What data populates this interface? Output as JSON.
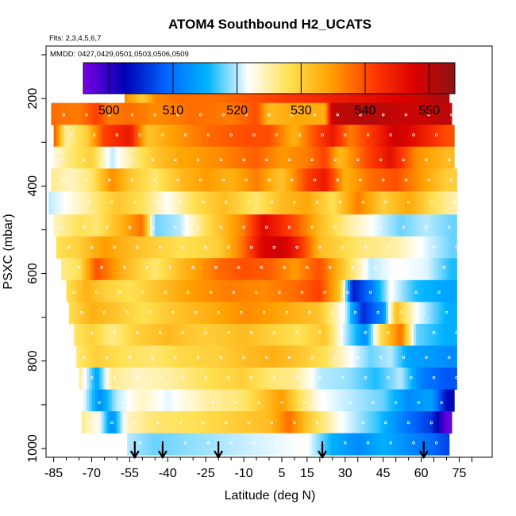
{
  "chart_data": {
    "type": "heatmap",
    "title": "ATOM4 Southbound H2_UCATS",
    "subtitle_flights": "Flts: 2,3,4,5,6,7",
    "subtitle_dates": "MMDD: 0427,0429,0501,0503,0506,0509",
    "xlabel": "Latitude (deg N)",
    "ylabel": "PSXC (mbar)",
    "xlim": [
      -88,
      88
    ],
    "ylim": [
      1020,
      80
    ],
    "x_ticks": [
      -85,
      -70,
      -55,
      -40,
      -25,
      -10,
      5,
      15,
      30,
      45,
      60,
      75
    ],
    "y_ticks": [
      200,
      400,
      600,
      800,
      1000
    ],
    "colorbar": {
      "range": [
        496,
        554
      ],
      "ticks": [
        500,
        510,
        520,
        530,
        540,
        550
      ],
      "colors": [
        "#7a00e6",
        "#0000b4",
        "#0064ff",
        "#00b4ff",
        "#ffffff",
        "#ffe050",
        "#ffa000",
        "#ff3c00",
        "#dc0000",
        "#8c1414"
      ]
    },
    "arrow_latitudes": [
      -53,
      -42,
      -20,
      21,
      61
    ],
    "rows": [
      {
        "p": 185,
        "lat_start": -57,
        "lat_end": 71,
        "knots": [
          [
            -57,
            536
          ],
          [
            -50,
            530
          ],
          [
            -45,
            536
          ],
          [
            -35,
            538
          ],
          [
            -20,
            538
          ],
          [
            -5,
            540
          ],
          [
            10,
            542
          ],
          [
            25,
            544
          ],
          [
            40,
            546
          ],
          [
            55,
            548
          ],
          [
            68,
            551
          ]
        ]
      },
      {
        "p": 235,
        "lat_start": -86,
        "lat_end": 72,
        "knots": [
          [
            -86,
            538
          ],
          [
            -75,
            537
          ],
          [
            -68,
            541
          ],
          [
            -63,
            537
          ],
          [
            -55,
            538
          ],
          [
            -45,
            536
          ],
          [
            -30,
            538
          ],
          [
            -15,
            537
          ],
          [
            -5,
            540
          ],
          [
            0,
            532
          ],
          [
            10,
            534
          ],
          [
            22,
            533
          ],
          [
            25,
            550
          ],
          [
            40,
            551
          ],
          [
            55,
            549
          ],
          [
            70,
            550
          ]
        ]
      },
      {
        "p": 285,
        "lat_start": -85,
        "lat_end": 73,
        "knots": [
          [
            -85,
            540
          ],
          [
            -80,
            525
          ],
          [
            -72,
            530
          ],
          [
            -65,
            541
          ],
          [
            -55,
            545
          ],
          [
            -48,
            531
          ],
          [
            -40,
            534
          ],
          [
            -25,
            538
          ],
          [
            -10,
            540
          ],
          [
            0,
            540
          ],
          [
            10,
            533
          ],
          [
            18,
            540
          ],
          [
            25,
            545
          ],
          [
            32,
            537
          ],
          [
            42,
            543
          ],
          [
            50,
            549
          ],
          [
            60,
            545
          ],
          [
            70,
            540
          ]
        ]
      },
      {
        "p": 335,
        "lat_start": -85,
        "lat_end": 73,
        "knots": [
          [
            -85,
            523
          ],
          [
            -78,
            527
          ],
          [
            -70,
            530
          ],
          [
            -62,
            520
          ],
          [
            -55,
            525
          ],
          [
            -45,
            531
          ],
          [
            -35,
            534
          ],
          [
            -20,
            536
          ],
          [
            -5,
            539
          ],
          [
            5,
            535
          ],
          [
            15,
            537
          ],
          [
            22,
            541
          ],
          [
            28,
            532
          ],
          [
            38,
            540
          ],
          [
            48,
            546
          ],
          [
            58,
            536
          ],
          [
            70,
            532
          ]
        ]
      },
      {
        "p": 385,
        "lat_start": -86,
        "lat_end": 74,
        "knots": [
          [
            -86,
            526
          ],
          [
            -78,
            524
          ],
          [
            -70,
            527
          ],
          [
            -62,
            536
          ],
          [
            -55,
            531
          ],
          [
            -45,
            527
          ],
          [
            -35,
            532
          ],
          [
            -25,
            535
          ],
          [
            -15,
            533
          ],
          [
            -5,
            537
          ],
          [
            5,
            531
          ],
          [
            15,
            541
          ],
          [
            22,
            545
          ],
          [
            30,
            533
          ],
          [
            40,
            538
          ],
          [
            50,
            540
          ],
          [
            60,
            535
          ],
          [
            70,
            530
          ]
        ]
      },
      {
        "p": 440,
        "lat_start": -87,
        "lat_end": 74,
        "knots": [
          [
            -87,
            520
          ],
          [
            -80,
            522
          ],
          [
            -72,
            525
          ],
          [
            -60,
            531
          ],
          [
            -50,
            528
          ],
          [
            -40,
            522
          ],
          [
            -30,
            528
          ],
          [
            -18,
            532
          ],
          [
            -5,
            527
          ],
          [
            5,
            532
          ],
          [
            15,
            534
          ],
          [
            25,
            528
          ],
          [
            35,
            537
          ],
          [
            45,
            530
          ],
          [
            55,
            534
          ],
          [
            65,
            528
          ],
          [
            72,
            525
          ]
        ]
      },
      {
        "p": 490,
        "lat_start": -85,
        "lat_end": 74,
        "knots": [
          [
            -85,
            524
          ],
          [
            -75,
            528
          ],
          [
            -68,
            527
          ],
          [
            -58,
            533
          ],
          [
            -50,
            538
          ],
          [
            -45,
            518
          ],
          [
            -35,
            520
          ],
          [
            -25,
            528
          ],
          [
            -10,
            537
          ],
          [
            -2,
            547
          ],
          [
            10,
            540
          ],
          [
            20,
            532
          ],
          [
            30,
            526
          ],
          [
            40,
            522
          ],
          [
            52,
            518
          ],
          [
            62,
            520
          ],
          [
            72,
            518
          ]
        ]
      },
      {
        "p": 540,
        "lat_start": -84,
        "lat_end": 74,
        "knots": [
          [
            -84,
            528
          ],
          [
            -75,
            530
          ],
          [
            -65,
            535
          ],
          [
            -55,
            532
          ],
          [
            -45,
            530
          ],
          [
            -35,
            528
          ],
          [
            -20,
            530
          ],
          [
            -10,
            538
          ],
          [
            -3,
            547
          ],
          [
            5,
            549
          ],
          [
            12,
            543
          ],
          [
            20,
            532
          ],
          [
            35,
            527
          ],
          [
            50,
            525
          ],
          [
            62,
            521
          ],
          [
            72,
            518
          ]
        ]
      },
      {
        "p": 590,
        "lat_start": -82,
        "lat_end": 74,
        "knots": [
          [
            -82,
            526
          ],
          [
            -75,
            528
          ],
          [
            -68,
            540
          ],
          [
            -58,
            533
          ],
          [
            -45,
            527
          ],
          [
            -35,
            532
          ],
          [
            -20,
            538
          ],
          [
            -10,
            540
          ],
          [
            0,
            539
          ],
          [
            10,
            535
          ],
          [
            20,
            540
          ],
          [
            30,
            530
          ],
          [
            40,
            520
          ],
          [
            50,
            522
          ],
          [
            62,
            521
          ],
          [
            72,
            516
          ]
        ]
      },
      {
        "p": 640,
        "lat_start": -80,
        "lat_end": 74,
        "knots": [
          [
            -80,
            528
          ],
          [
            -72,
            533
          ],
          [
            -65,
            530
          ],
          [
            -55,
            528
          ],
          [
            -45,
            531
          ],
          [
            -30,
            535
          ],
          [
            -15,
            537
          ],
          [
            -2,
            536
          ],
          [
            10,
            538
          ],
          [
            20,
            541
          ],
          [
            28,
            531
          ],
          [
            33,
            504
          ],
          [
            40,
            510
          ],
          [
            48,
            522
          ],
          [
            58,
            516
          ],
          [
            70,
            514
          ]
        ]
      },
      {
        "p": 690,
        "lat_start": -79,
        "lat_end": 74,
        "knots": [
          [
            -79,
            528
          ],
          [
            -70,
            533
          ],
          [
            -60,
            531
          ],
          [
            -50,
            528
          ],
          [
            -38,
            531
          ],
          [
            -25,
            533
          ],
          [
            -10,
            536
          ],
          [
            0,
            535
          ],
          [
            10,
            533
          ],
          [
            20,
            531
          ],
          [
            30,
            521
          ],
          [
            37,
            505
          ],
          [
            45,
            512
          ],
          [
            50,
            532
          ],
          [
            58,
            522
          ],
          [
            70,
            515
          ]
        ]
      },
      {
        "p": 740,
        "lat_start": -77,
        "lat_end": 74,
        "knots": [
          [
            -77,
            527
          ],
          [
            -70,
            530
          ],
          [
            -62,
            526
          ],
          [
            -52,
            530
          ],
          [
            -40,
            532
          ],
          [
            -25,
            530
          ],
          [
            -10,
            532
          ],
          [
            0,
            530
          ],
          [
            12,
            528
          ],
          [
            22,
            531
          ],
          [
            30,
            520
          ],
          [
            38,
            512
          ],
          [
            44,
            528
          ],
          [
            52,
            538
          ],
          [
            58,
            518
          ],
          [
            70,
            515
          ]
        ]
      },
      {
        "p": 790,
        "lat_start": -76,
        "lat_end": 74,
        "knots": [
          [
            -76,
            527
          ],
          [
            -68,
            530
          ],
          [
            -58,
            528
          ],
          [
            -45,
            527
          ],
          [
            -35,
            529
          ],
          [
            -20,
            530
          ],
          [
            -8,
            532
          ],
          [
            2,
            533
          ],
          [
            12,
            531
          ],
          [
            22,
            528
          ],
          [
            32,
            522
          ],
          [
            40,
            518
          ],
          [
            48,
            520
          ],
          [
            55,
            514
          ],
          [
            65,
            513
          ],
          [
            72,
            512
          ]
        ]
      },
      {
        "p": 840,
        "lat_start": -75,
        "lat_end": 74,
        "knots": [
          [
            -75,
            526
          ],
          [
            -68,
            514
          ],
          [
            -62,
            526
          ],
          [
            -52,
            524
          ],
          [
            -40,
            525
          ],
          [
            -25,
            528
          ],
          [
            -10,
            530
          ],
          [
            0,
            527
          ],
          [
            10,
            526
          ],
          [
            20,
            520
          ],
          [
            32,
            519
          ],
          [
            42,
            516
          ],
          [
            52,
            520
          ],
          [
            60,
            511
          ],
          [
            70,
            508
          ]
        ]
      },
      {
        "p": 890,
        "lat_start": -74,
        "lat_end": 73,
        "knots": [
          [
            -74,
            523
          ],
          [
            -67,
            512
          ],
          [
            -60,
            520
          ],
          [
            -50,
            524
          ],
          [
            -40,
            521
          ],
          [
            -25,
            525
          ],
          [
            -10,
            527
          ],
          [
            5,
            535
          ],
          [
            12,
            528
          ],
          [
            20,
            522
          ],
          [
            32,
            520
          ],
          [
            45,
            518
          ],
          [
            55,
            512
          ],
          [
            64,
            514
          ],
          [
            70,
            503
          ]
        ]
      },
      {
        "p": 940,
        "lat_start": -74,
        "lat_end": 72,
        "knots": [
          [
            -74,
            526
          ],
          [
            -67,
            522
          ],
          [
            -62,
            512
          ],
          [
            -56,
            524
          ],
          [
            -45,
            527
          ],
          [
            -30,
            528
          ],
          [
            -15,
            530
          ],
          [
            0,
            532
          ],
          [
            8,
            538
          ],
          [
            15,
            531
          ],
          [
            28,
            522
          ],
          [
            42,
            517
          ],
          [
            55,
            510
          ],
          [
            64,
            506
          ],
          [
            70,
            497
          ]
        ]
      },
      {
        "p": 990,
        "lat_start": -56,
        "lat_end": 71,
        "knots": [
          [
            -56,
            520
          ],
          [
            -45,
            518
          ],
          [
            -30,
            519
          ],
          [
            -15,
            520
          ],
          [
            0,
            521
          ],
          [
            15,
            522
          ],
          [
            25,
            515
          ],
          [
            35,
            512
          ],
          [
            45,
            515
          ],
          [
            55,
            512
          ],
          [
            65,
            509
          ],
          [
            70,
            507
          ]
        ]
      }
    ]
  }
}
